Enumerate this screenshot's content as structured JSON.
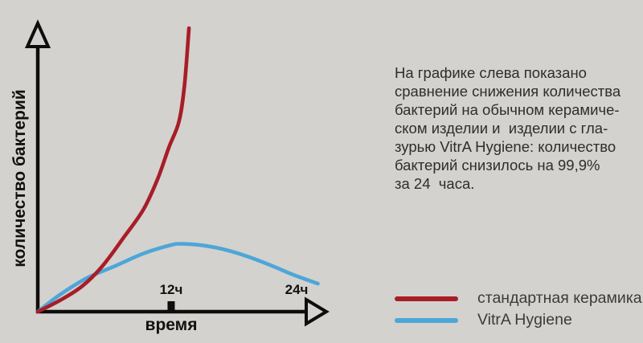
{
  "colors": {
    "background": "#d3d2ce",
    "axis": "#0d0d0d",
    "text": "#2e2e2e",
    "standard_ceramic": "#a81d28",
    "vitra_hygiene": "#4da6d8"
  },
  "chart_data": {
    "type": "line",
    "title": "",
    "xlabel": "время",
    "ylabel": "количество бактерий",
    "xlim": [
      0,
      26
    ],
    "ylim": [
      0,
      105
    ],
    "grid": false,
    "legend_position": "bottom-right",
    "x_unit": "ч",
    "x_ticks": [
      {
        "value": 12,
        "label": "12ч",
        "mark": true
      },
      {
        "value": 24,
        "label": "24ч",
        "mark": false
      }
    ],
    "series": [
      {
        "name": "стандартная керамика",
        "color": "#a81d28",
        "x": [
          0,
          2,
          4,
          5.8,
          7.7,
          9.5,
          10.8,
          11.8,
          12.7,
          13.2,
          13.6
        ],
        "y": [
          0,
          4,
          9,
          16,
          26,
          36,
          47,
          58,
          67,
          80,
          100
        ]
      },
      {
        "name": "VitrA Hygiene",
        "color": "#4da6d8",
        "x": [
          0,
          2,
          4.5,
          6.9,
          9.5,
          12,
          13,
          15,
          17,
          19,
          21,
          23,
          25.2
        ],
        "y": [
          0,
          6,
          12,
          16,
          20.5,
          23.5,
          23.9,
          23.3,
          21.7,
          19.3,
          16.3,
          13,
          9.9
        ]
      }
    ]
  },
  "description": {
    "lines": [
      "На графике слева показано",
      "сравнение снижения количества",
      "бактерий на обычном керамиче-",
      "ском изделии и  изделии с гла-",
      "зурью VitrA Hygiene: количество",
      "бактерий снизилось на 99,9%",
      "за 24  часа."
    ]
  },
  "legend": {
    "items": [
      {
        "label": "стандартная керамика",
        "color": "#a81d28"
      },
      {
        "label": "VitrA Hygiene",
        "color": "#4da6d8"
      }
    ]
  }
}
